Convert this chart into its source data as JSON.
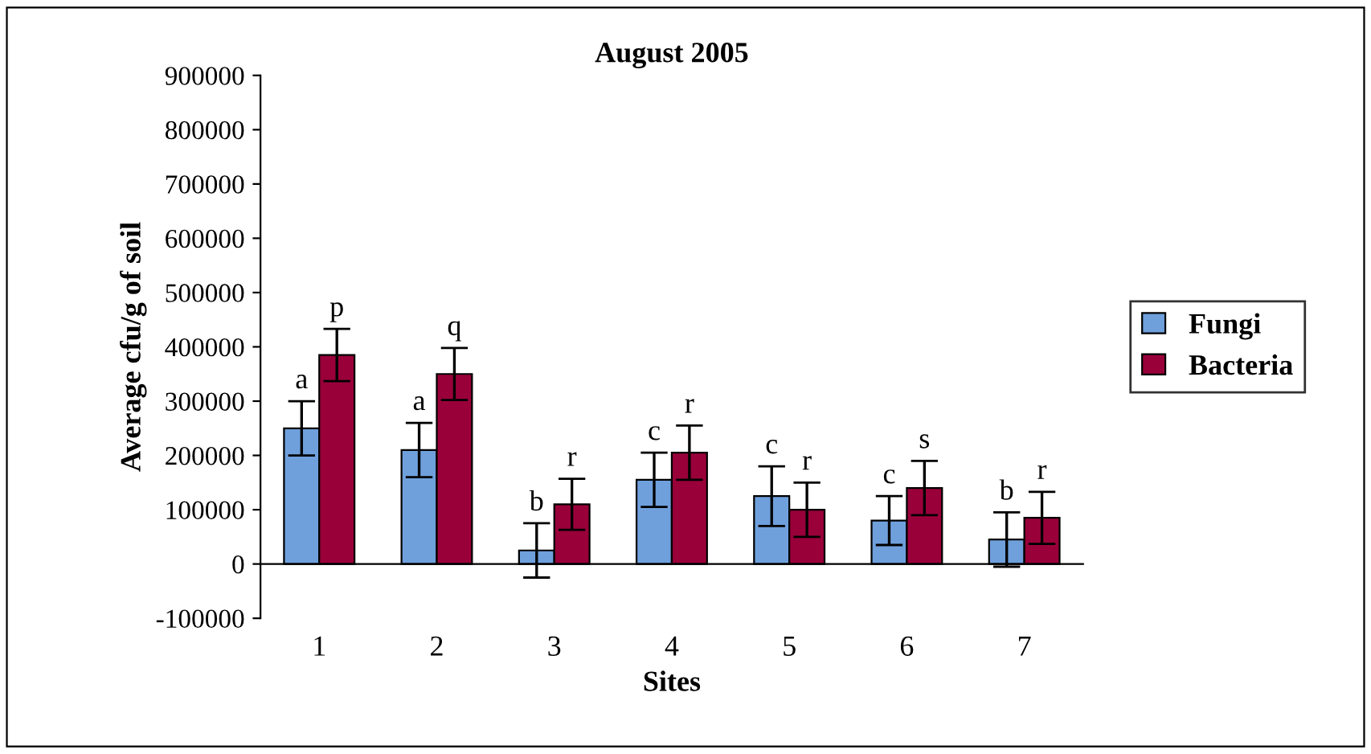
{
  "chart_data": {
    "type": "bar",
    "title": "August 2005",
    "xlabel": "Sites",
    "ylabel": "Average cfu/g of soil",
    "categories": [
      "1",
      "2",
      "3",
      "4",
      "5",
      "6",
      "7"
    ],
    "series": [
      {
        "name": "Fungi",
        "color": "#6fa0dc",
        "values": [
          250000,
          210000,
          25000,
          155000,
          125000,
          80000,
          45000
        ],
        "errors": [
          50000,
          50000,
          50000,
          50000,
          55000,
          45000,
          50000
        ]
      },
      {
        "name": "Bacteria",
        "color": "#99003a",
        "values": [
          385000,
          350000,
          110000,
          205000,
          100000,
          140000,
          85000
        ],
        "errors": [
          48000,
          48000,
          47000,
          50000,
          50000,
          50000,
          48000
        ]
      }
    ],
    "annotations": [
      {
        "text": "a",
        "x": "1",
        "y": 300000
      },
      {
        "text": "p",
        "x": "1",
        "y": 433000
      },
      {
        "text": "a",
        "x": "2",
        "y": 260000
      },
      {
        "text": "q",
        "x": "2",
        "y": 398000
      },
      {
        "text": "b",
        "x": "3",
        "y": 75000
      },
      {
        "text": "r",
        "x": "3",
        "y": 157000
      },
      {
        "text": "c",
        "x": "4",
        "y": 205000
      },
      {
        "text": "r",
        "x": "4",
        "y": 255000
      },
      {
        "text": "c",
        "x": "5",
        "y": 180000
      },
      {
        "text": "r",
        "x": "5",
        "y": 150000
      },
      {
        "text": "c",
        "x": "6",
        "y": 125000
      },
      {
        "text": "s",
        "x": "6",
        "y": 190000
      },
      {
        "text": "b",
        "x": "7",
        "y": 95000
      },
      {
        "text": "r",
        "x": "7",
        "y": 133000
      }
    ],
    "ylim": [
      -100000,
      900000
    ],
    "yticks": [
      -100000,
      0,
      100000,
      200000,
      300000,
      400000,
      500000,
      600000,
      700000,
      800000,
      900000
    ],
    "legend": "right",
    "grid": false
  }
}
